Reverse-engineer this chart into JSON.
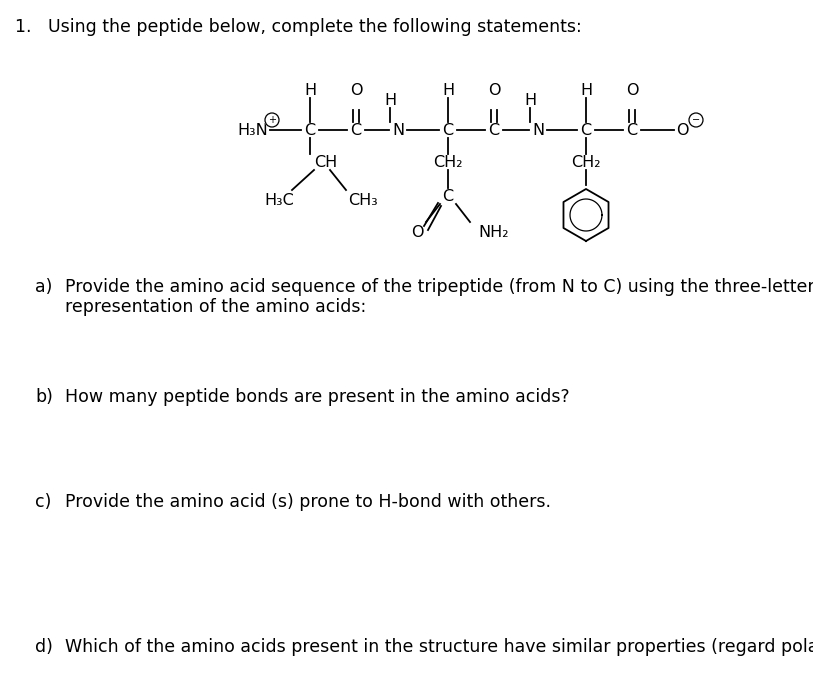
{
  "background_color": "#ffffff",
  "title": "1.   Using the peptide below, complete the following statements:",
  "q_a_label": "a)",
  "q_a_text": "Provide the amino acid sequence of the tripeptide (from N to C) using the three-letter code",
  "q_a_text2": "representation of the amino acids:",
  "q_b_label": "b)",
  "q_b_text": "How many peptide bonds are present in the amino acids?",
  "q_c_label": "c)",
  "q_c_text": "Provide the amino acid (s) prone to H-bond with others.",
  "q_d_label": "d)",
  "q_d_text": "Which of the amino acids present in the structure have similar properties (regard polarity)?",
  "font_size_title": 12.5,
  "font_size_q": 12.5,
  "font_size_struct": 11.5
}
